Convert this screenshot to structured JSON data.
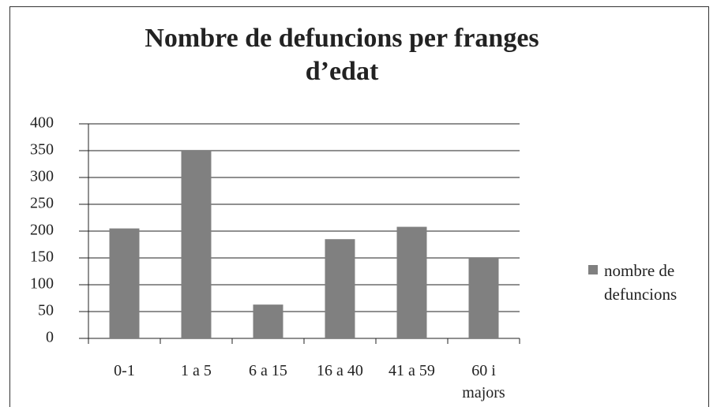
{
  "chart_data": {
    "type": "bar",
    "title": "Nombre de defuncions per franges d’edat",
    "categories": [
      "0-1",
      "1 a 5",
      "6 a 15",
      "16 a 40",
      "41 a 59",
      "60 i majors"
    ],
    "series": [
      {
        "name": "nombre de defuncions",
        "color": "#808080",
        "values": [
          205,
          350,
          63,
          185,
          208,
          150
        ]
      }
    ],
    "ylim": [
      0,
      400
    ],
    "yticks": [
      0,
      50,
      100,
      150,
      200,
      250,
      300,
      350,
      400
    ],
    "grid": true,
    "legend": "right"
  }
}
